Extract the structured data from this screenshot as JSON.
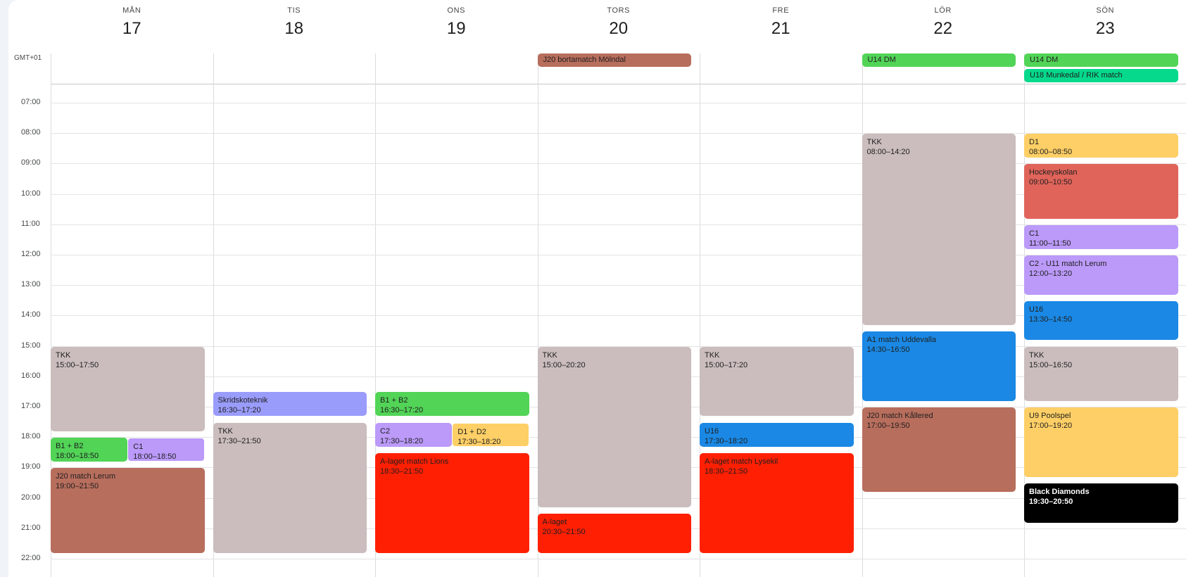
{
  "timezone": "GMT+01",
  "days": [
    {
      "dow": "MÅN",
      "num": "17"
    },
    {
      "dow": "TIS",
      "num": "18"
    },
    {
      "dow": "ONS",
      "num": "19"
    },
    {
      "dow": "TORS",
      "num": "20"
    },
    {
      "dow": "FRE",
      "num": "21"
    },
    {
      "dow": "LÖR",
      "num": "22"
    },
    {
      "dow": "SÖN",
      "num": "23"
    }
  ],
  "hours": [
    "07:00",
    "08:00",
    "09:00",
    "10:00",
    "11:00",
    "12:00",
    "13:00",
    "14:00",
    "15:00",
    "16:00",
    "17:00",
    "18:00",
    "19:00",
    "20:00",
    "21:00",
    "22:00"
  ],
  "colors": {
    "grey": "#cbbdbd",
    "green": "#52d457",
    "lilac": "#bb9af9",
    "periwinkle": "#9a9cfb",
    "yellow": "#fecf66",
    "red": "#ff1f03",
    "brown": "#b86e5d",
    "blue": "#1a88e4",
    "salmon": "#e0645a",
    "teal": "#06d98c",
    "black": "#000000"
  },
  "allday_events": [
    {
      "day": 3,
      "title": "J20 bortamatch Mölndal",
      "color": "brown"
    },
    {
      "day": 5,
      "title": "U14 DM",
      "color": "green"
    },
    {
      "day": 6,
      "title": "U14 DM",
      "color": "green"
    },
    {
      "day": 6,
      "title": "U18 Munkedal / RIK match",
      "color": "teal"
    }
  ],
  "events": [
    {
      "day": 0,
      "title": "TKK",
      "time": "15:00–17:50",
      "start": "15:00",
      "end": "17:50",
      "color": "grey"
    },
    {
      "day": 0,
      "title": "B1 + B2",
      "time": "18:00–18:50",
      "start": "18:00",
      "end": "18:50",
      "color": "green",
      "col": 0,
      "cols": 2
    },
    {
      "day": 0,
      "title": "C1",
      "time": "18:00–18:50",
      "start": "18:00",
      "end": "18:50",
      "color": "lilac",
      "col": 1,
      "cols": 2
    },
    {
      "day": 0,
      "title": "J20 match Lerum",
      "time": "19:00–21:50",
      "start": "19:00",
      "end": "21:50",
      "color": "brown"
    },
    {
      "day": 1,
      "title": "Skridskoteknik",
      "time": "16:30–17:20",
      "start": "16:30",
      "end": "17:20",
      "color": "periwinkle"
    },
    {
      "day": 1,
      "title": "TKK",
      "time": "17:30–21:50",
      "start": "17:30",
      "end": "21:50",
      "color": "grey"
    },
    {
      "day": 2,
      "title": "B1 + B2",
      "time": "16:30–17:20",
      "start": "16:30",
      "end": "17:20",
      "color": "green"
    },
    {
      "day": 2,
      "title": "C2",
      "time": "17:30–18:20",
      "start": "17:30",
      "end": "18:20",
      "color": "lilac",
      "col": 0,
      "cols": 2
    },
    {
      "day": 2,
      "title": "D1 + D2",
      "time": "17:30–18:20",
      "start": "17:30",
      "end": "18:20",
      "color": "yellow",
      "col": 1,
      "cols": 2
    },
    {
      "day": 2,
      "title": "A-laget match Lions",
      "time": "18:30–21:50",
      "start": "18:30",
      "end": "21:50",
      "color": "red"
    },
    {
      "day": 3,
      "title": "TKK",
      "time": "15:00–20:20",
      "start": "15:00",
      "end": "20:20",
      "color": "grey"
    },
    {
      "day": 3,
      "title": "A-laget",
      "time": "20:30–21:50",
      "start": "20:30",
      "end": "21:50",
      "color": "red"
    },
    {
      "day": 4,
      "title": "TKK",
      "time": "15:00–17:20",
      "start": "15:00",
      "end": "17:20",
      "color": "grey"
    },
    {
      "day": 4,
      "title": "U16",
      "time": "17:30–18:20",
      "start": "17:30",
      "end": "18:20",
      "color": "blue"
    },
    {
      "day": 4,
      "title": "A-laget match Lysekil",
      "time": "18:30–21:50",
      "start": "18:30",
      "end": "21:50",
      "color": "red"
    },
    {
      "day": 5,
      "title": "TKK",
      "time": "08:00–14:20",
      "start": "08:00",
      "end": "14:20",
      "color": "grey"
    },
    {
      "day": 5,
      "title": "A1 match Uddevalla",
      "time": "14:30–16:50",
      "start": "14:30",
      "end": "16:50",
      "color": "blue"
    },
    {
      "day": 5,
      "title": "J20 match Kållered",
      "time": "17:00–19:50",
      "start": "17:00",
      "end": "19:50",
      "color": "brown"
    },
    {
      "day": 6,
      "title": "D1",
      "time": "08:00–08:50",
      "start": "08:00",
      "end": "08:50",
      "color": "yellow"
    },
    {
      "day": 6,
      "title": "Hockeyskolan",
      "time": "09:00–10:50",
      "start": "09:00",
      "end": "10:50",
      "color": "salmon"
    },
    {
      "day": 6,
      "title": "C1",
      "time": "11:00–11:50",
      "start": "11:00",
      "end": "11:50",
      "color": "lilac"
    },
    {
      "day": 6,
      "title": "C2 - U11 match Lerum",
      "time": "12:00–13:20",
      "start": "12:00",
      "end": "13:20",
      "color": "lilac"
    },
    {
      "day": 6,
      "title": "U16",
      "time": "13:30–14:50",
      "start": "13:30",
      "end": "14:50",
      "color": "blue"
    },
    {
      "day": 6,
      "title": "TKK",
      "time": "15:00–16:50",
      "start": "15:00",
      "end": "16:50",
      "color": "grey"
    },
    {
      "day": 6,
      "title": "U9 Poolspel",
      "time": "17:00–19:20",
      "start": "17:00",
      "end": "19:20",
      "color": "yellow"
    },
    {
      "day": 6,
      "title": "Black Diamonds",
      "time": "19:30–20:50",
      "start": "19:30",
      "end": "20:50",
      "color": "black",
      "text_color": "#ffffff"
    }
  ]
}
